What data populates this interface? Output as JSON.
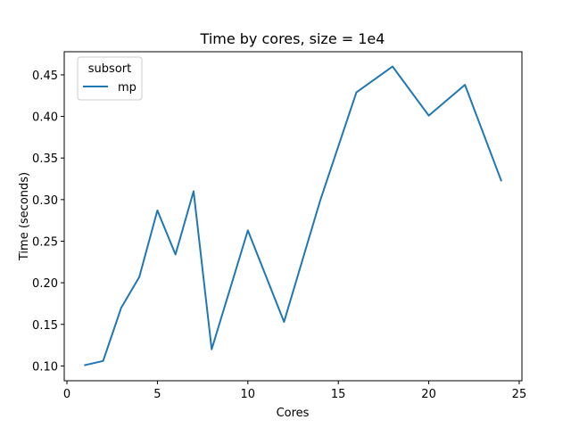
{
  "chart_data": {
    "type": "line",
    "title": "Time by cores, size = 1e4",
    "xlabel": "Cores",
    "ylabel": "Time (seconds)",
    "xlim": [
      -0.15,
      25.15
    ],
    "ylim": [
      0.0822,
      0.4778
    ],
    "xticks": [
      0,
      5,
      10,
      15,
      20,
      25
    ],
    "xtick_labels": [
      "0",
      "5",
      "10",
      "15",
      "20",
      "25"
    ],
    "yticks": [
      0.1,
      0.15,
      0.2,
      0.25,
      0.3,
      0.35,
      0.4,
      0.45
    ],
    "ytick_labels": [
      "0.10",
      "0.15",
      "0.20",
      "0.25",
      "0.30",
      "0.35",
      "0.40",
      "0.45"
    ],
    "grid": false,
    "legend": {
      "title": "subsort",
      "placement": "top-left"
    },
    "series": [
      {
        "name": "mp",
        "color": "#1f77b4",
        "x": [
          1,
          2,
          3,
          4,
          5,
          6,
          7,
          8,
          10,
          12,
          14,
          16,
          18,
          20,
          22,
          24
        ],
        "y": [
          0.101,
          0.106,
          0.17,
          0.207,
          0.287,
          0.234,
          0.31,
          0.12,
          0.263,
          0.153,
          0.299,
          0.429,
          0.46,
          0.401,
          0.438,
          0.323
        ]
      }
    ]
  }
}
